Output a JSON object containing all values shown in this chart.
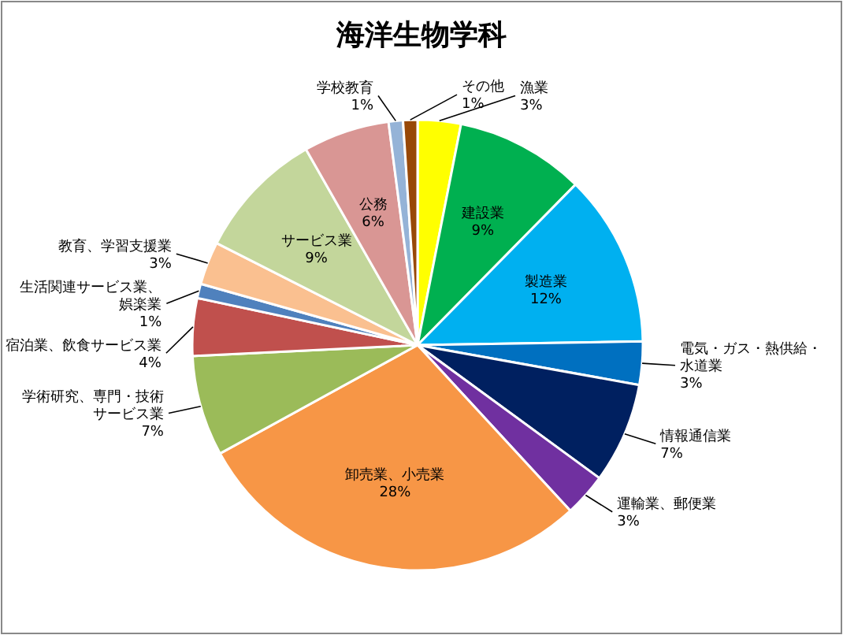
{
  "chart_data": {
    "type": "pie",
    "title": "海洋生物学科",
    "categories": [
      "漁業",
      "建設業",
      "製造業",
      "電気・ガス・熱供給・水道業",
      "情報通信業",
      "運輸業、郵便業",
      "卸売業、小売業",
      "学術研究、専門・技術サービス業",
      "宿泊業、飲食サービス業",
      "生活関連サービス業、娯楽業",
      "教育、学習支援業",
      "サービス業",
      "公務",
      "学校教育",
      "その他"
    ],
    "values": [
      3,
      9,
      12,
      3,
      7,
      3,
      28,
      7,
      4,
      1,
      3,
      9,
      6,
      1,
      1
    ],
    "value_labels": [
      "3%",
      "9%",
      "12%",
      "3%",
      "7%",
      "3%",
      "28%",
      "7%",
      "4%",
      "1%",
      "3%",
      "9%",
      "6%",
      "1%",
      "1%"
    ],
    "colors": [
      "#ffff00",
      "#00b050",
      "#00b0f0",
      "#0070c0",
      "#002060",
      "#7030a0",
      "#f79646",
      "#9bbb59",
      "#c0504d",
      "#4f81bd",
      "#fac090",
      "#c3d69b",
      "#d99694",
      "#95b3d7",
      "#984807"
    ]
  }
}
